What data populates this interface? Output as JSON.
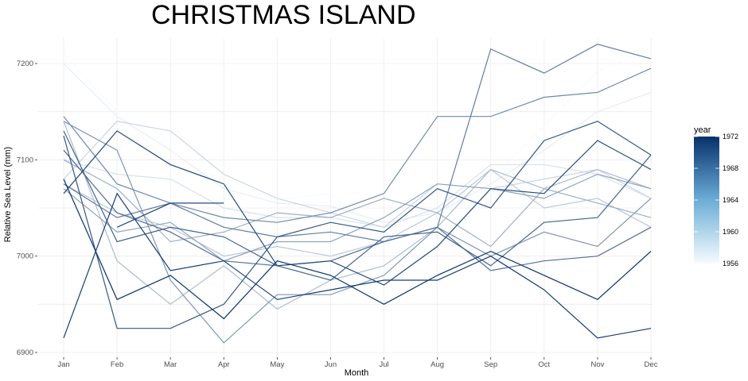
{
  "chart_data": {
    "type": "line",
    "title": "CHRISTMAS ISLAND",
    "xlabel": "Month",
    "ylabel": "Relative Sea Level (mm)",
    "categories": [
      "Jan",
      "Feb",
      "Mar",
      "Apr",
      "May",
      "Jun",
      "Jul",
      "Aug",
      "Sep",
      "Oct",
      "Nov",
      "Dec"
    ],
    "yticks": [
      6900,
      7000,
      7100,
      7200
    ],
    "ylim": [
      6895,
      7220
    ],
    "grid": true,
    "legend": {
      "title": "year",
      "type": "colorbar",
      "range": [
        1956,
        1972
      ],
      "ticks": [
        1956,
        1960,
        1964,
        1968,
        1972
      ],
      "low_color": "#F7FBFF",
      "high_color": "#08306B",
      "placement": "right"
    },
    "series": [
      {
        "year": 1956,
        "values": [
          7210,
          7150,
          7095,
          7082,
          7058,
          7065,
          7020,
          7040,
          7080,
          7135,
          7192,
          7215
        ]
      },
      {
        "year": 1957,
        "values": [
          7200,
          7145,
          7110,
          7070,
          7055,
          7052,
          7035,
          7045,
          7075,
          7110,
          7150,
          7170
        ]
      },
      {
        "year": 1958,
        "values": [
          7100,
          7085,
          7080,
          7050,
          7040,
          7040,
          7030,
          7050,
          7095,
          7095,
          7085,
          7060
        ]
      },
      {
        "year": 1959,
        "values": [
          7080,
          7140,
          7130,
          7085,
          7060,
          7045,
          7030,
          7075,
          7070,
          7080,
          7090,
          7060
        ]
      },
      {
        "year": 1960,
        "values": [
          7075,
          7045,
          7030,
          7000,
          7010,
          7000,
          7015,
          7045,
          7090,
          7050,
          7060,
          7030
        ]
      },
      {
        "year": 1961,
        "values": [
          7140,
          6995,
          6950,
          6990,
          6945,
          6975,
          6990,
          7030,
          7090,
          7070,
          7090,
          7070
        ]
      },
      {
        "year": 1962,
        "values": [
          7100,
          7070,
          7015,
          7025,
          7045,
          7040,
          7060,
          7045,
          7010,
          7070,
          7055,
          7040
        ]
      },
      {
        "year": 1963,
        "values": [
          7070,
          7025,
          7035,
          6995,
          7015,
          7015,
          7040,
          7075,
          7070,
          7060,
          7085,
          7070
        ]
      },
      {
        "year": 1964,
        "values": [
          7140,
          7110,
          6975,
          6910,
          6960,
          6960,
          6980,
          7030,
          7000,
          7025,
          7010,
          7060
        ]
      },
      {
        "year": 1965,
        "values": [
          7145,
          7075,
          7055,
          7040,
          7035,
          7045,
          7065,
          7145,
          7145,
          7165,
          7170,
          7195
        ]
      },
      {
        "year": 1966,
        "values": [
          7075,
          7040,
          7055,
          7030,
          7020,
          7025,
          7015,
          7030,
          7215,
          7190,
          7220,
          7205
        ]
      },
      {
        "year": 1967,
        "values": [
          7110,
          7045,
          7025,
          6995,
          6990,
          6995,
          7015,
          7030,
          6985,
          6995,
          7000,
          7030
        ]
      },
      {
        "year": 1968,
        "values": [
          7130,
          7015,
          7030,
          7020,
          6990,
          6975,
          7020,
          7025,
          6990,
          7035,
          7040,
          7105
        ]
      },
      {
        "year": 1969,
        "values": [
          7125,
          6925,
          6925,
          6950,
          7020,
          7035,
          7025,
          7070,
          7050,
          7120,
          7140,
          7105
        ]
      },
      {
        "year": 1970,
        "values": [
          7065,
          7130,
          7095,
          7075,
          6990,
          6995,
          6970,
          7010,
          7070,
          7065,
          7120,
          7090
        ]
      },
      {
        "year": 1971,
        "values": [
          6915,
          7065,
          6985,
          6995,
          6955,
          6965,
          6975,
          6975,
          7000,
          6965,
          6915,
          6925
        ]
      },
      {
        "year": 1972,
        "values": [
          7080,
          6955,
          6980,
          6935,
          6995,
          6980,
          6950,
          6980,
          7005,
          6980,
          6955,
          7005
        ]
      },
      {
        "year": 1970,
        "values": [
          null,
          7030,
          7055,
          7055,
          null,
          null,
          null,
          null,
          null,
          null,
          null,
          null
        ]
      }
    ]
  }
}
